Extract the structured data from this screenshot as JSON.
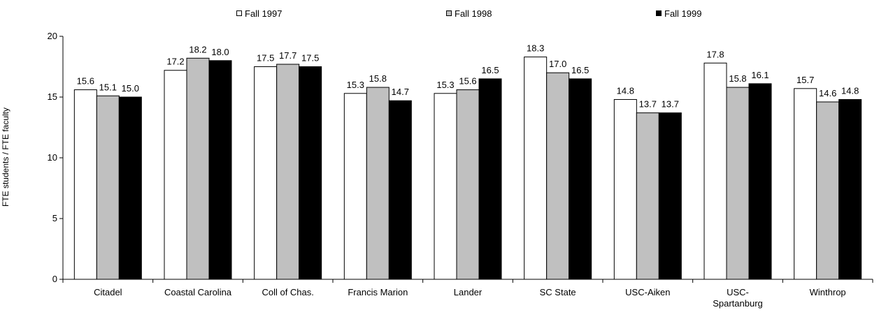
{
  "chart_data": {
    "type": "bar",
    "title": "",
    "xlabel": "",
    "ylabel": "FTE students / FTE faculty",
    "ylim": [
      0,
      20
    ],
    "yticks": [
      0,
      5,
      10,
      15,
      20
    ],
    "grid": false,
    "legend_position": "top",
    "categories": [
      [
        "Citadel"
      ],
      [
        "Coastal Carolina"
      ],
      [
        "Coll of Chas."
      ],
      [
        "Francis Marion"
      ],
      [
        "Lander"
      ],
      [
        "SC State"
      ],
      [
        "USC-Aiken"
      ],
      [
        "USC-",
        "Spartanburg"
      ],
      [
        "Winthrop"
      ]
    ],
    "series": [
      {
        "name": "Fall 1997",
        "color": "#ffffff",
        "values": [
          15.6,
          17.2,
          17.5,
          15.3,
          15.3,
          18.3,
          14.8,
          17.8,
          15.7
        ]
      },
      {
        "name": "Fall 1998",
        "color": "#c0c0c0",
        "values": [
          15.1,
          18.2,
          17.7,
          15.8,
          15.6,
          17.0,
          13.7,
          15.8,
          14.6
        ]
      },
      {
        "name": "Fall 1999",
        "color": "#000000",
        "values": [
          15.0,
          18.0,
          17.5,
          14.7,
          16.5,
          16.5,
          13.7,
          16.1,
          14.8
        ]
      }
    ]
  }
}
